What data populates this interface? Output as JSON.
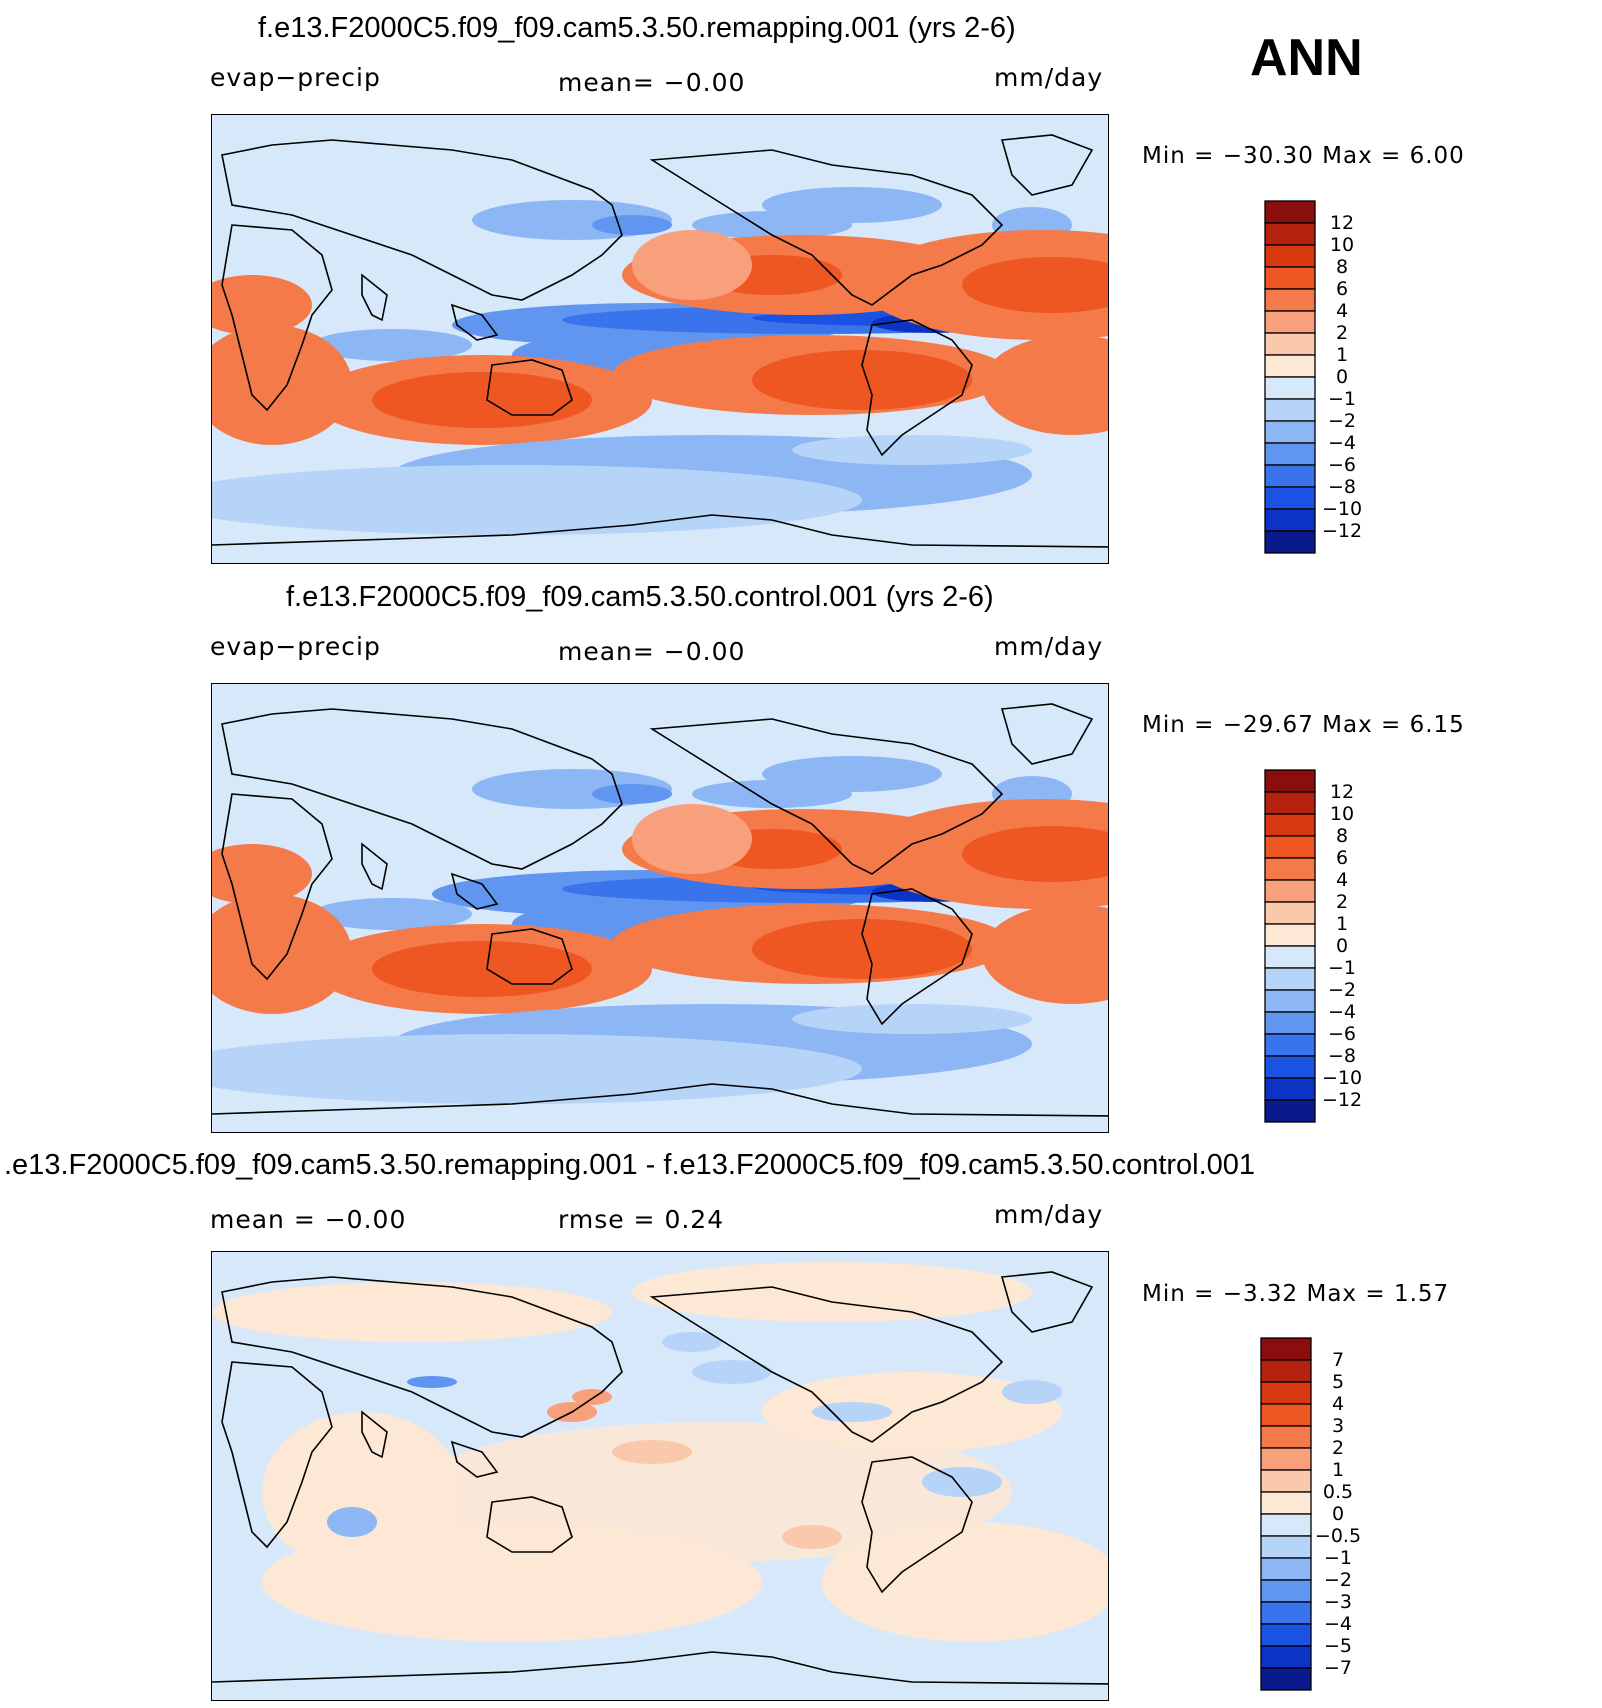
{
  "header": {
    "season": "ANN"
  },
  "panels": [
    {
      "title": "f.e13.F2000C5.f09_f09.cam5.3.50.remapping.001 (yrs 2-6)",
      "left_label": "evap−precip",
      "center_label": "mean=   −0.00",
      "units": "mm/day",
      "minmax": "Min  =  −30.30  Max  =     6.00"
    },
    {
      "title": "f.e13.F2000C5.f09_f09.cam5.3.50.control.001 (yrs 2-6)",
      "left_label": "evap−precip",
      "center_label": "mean=   −0.00",
      "units": "mm/day",
      "minmax": "Min  =  −29.67  Max  =     6.15"
    },
    {
      "title": ".e13.F2000C5.f09_f09.cam5.3.50.remapping.001 - f.e13.F2000C5.f09_f09.cam5.3.50.control.001",
      "left_label": "mean  =    −0.00",
      "center_label": "rmse  =     0.24",
      "units": "mm/day",
      "minmax": "Min  =    −3.32  Max  =     1.57"
    }
  ],
  "chart_data": [
    {
      "type": "heatmap",
      "title": "f.e13.F2000C5.f09_f09.cam5.3.50.remapping.001 (yrs 2-6)",
      "variable": "evap−precip",
      "units": "mm/day",
      "mean": -0.0,
      "min": -30.3,
      "max": 6.0,
      "colorbar_ticks": [
        "12",
        "10",
        "8",
        "6",
        "4",
        "2",
        "1",
        "0",
        "−1",
        "−2",
        "−4",
        "−6",
        "−8",
        "−10",
        "−12"
      ],
      "colorbar_colors": [
        "#8a0e0e",
        "#b52310",
        "#d83810",
        "#ee5622",
        "#f47a4a",
        "#f8a07c",
        "#fac8aa",
        "#fde8d6",
        "#d7e8fb",
        "#b6d3f8",
        "#8db6f4",
        "#6096f0",
        "#3a74ec",
        "#1a52e4",
        "#0b34c4",
        "#0a1a8a"
      ]
    },
    {
      "type": "heatmap",
      "title": "f.e13.F2000C5.f09_f09.cam5.3.50.control.001 (yrs 2-6)",
      "variable": "evap−precip",
      "units": "mm/day",
      "mean": -0.0,
      "min": -29.67,
      "max": 6.15,
      "colorbar_ticks": [
        "12",
        "10",
        "8",
        "6",
        "4",
        "2",
        "1",
        "0",
        "−1",
        "−2",
        "−4",
        "−6",
        "−8",
        "−10",
        "−12"
      ],
      "colorbar_colors": [
        "#8a0e0e",
        "#b52310",
        "#d83810",
        "#ee5622",
        "#f47a4a",
        "#f8a07c",
        "#fac8aa",
        "#fde8d6",
        "#d7e8fb",
        "#b6d3f8",
        "#8db6f4",
        "#6096f0",
        "#3a74ec",
        "#1a52e4",
        "#0b34c4",
        "#0a1a8a"
      ]
    },
    {
      "type": "heatmap",
      "title": ".e13.F2000C5.f09_f09.cam5.3.50.remapping.001 - f.e13.F2000C5.f09_f09.cam5.3.50.control.001",
      "units": "mm/day",
      "mean": -0.0,
      "rmse": 0.24,
      "min": -3.32,
      "max": 1.57,
      "colorbar_ticks": [
        "7",
        "5",
        "4",
        "3",
        "2",
        "1",
        "0.5",
        "0",
        "−0.5",
        "−1",
        "−2",
        "−3",
        "−4",
        "−5",
        "−7"
      ],
      "colorbar_colors": [
        "#8a0e0e",
        "#b52310",
        "#d83810",
        "#ee5622",
        "#f47a4a",
        "#f8a07c",
        "#fac8aa",
        "#fde8d6",
        "#d7e8fb",
        "#b6d3f8",
        "#8db6f4",
        "#6096f0",
        "#3a74ec",
        "#1a52e4",
        "#0b34c4",
        "#0a1a8a"
      ]
    }
  ]
}
